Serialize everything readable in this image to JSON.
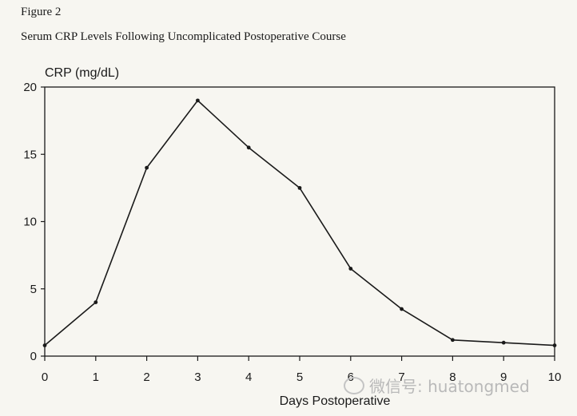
{
  "figure_label": "Figure 2",
  "watermark": {
    "icon": "wechat-icon",
    "text": "微信号: huatongmed"
  },
  "chart_data": {
    "type": "line",
    "title": "Serum CRP Levels Following Uncomplicated Postoperative Course",
    "xlabel": "Days Postoperative",
    "ylabel": "CRP (mg/dL)",
    "x": [
      0,
      1,
      2,
      3,
      4,
      5,
      6,
      7,
      8,
      9,
      10
    ],
    "series": [
      {
        "values": [
          0.8,
          4.0,
          14.0,
          19.0,
          15.5,
          12.5,
          6.5,
          3.5,
          1.2,
          1.0,
          0.8
        ]
      }
    ],
    "xlim": [
      0,
      10
    ],
    "ylim": [
      0,
      20
    ],
    "xticks": [
      "0",
      "1",
      "2",
      "3",
      "4",
      "5",
      "6",
      "7",
      "8",
      "9",
      "10"
    ],
    "yticks": [
      "0",
      "5",
      "10",
      "15",
      "20"
    ],
    "grid": false,
    "line_color": "#1a1a1a"
  }
}
